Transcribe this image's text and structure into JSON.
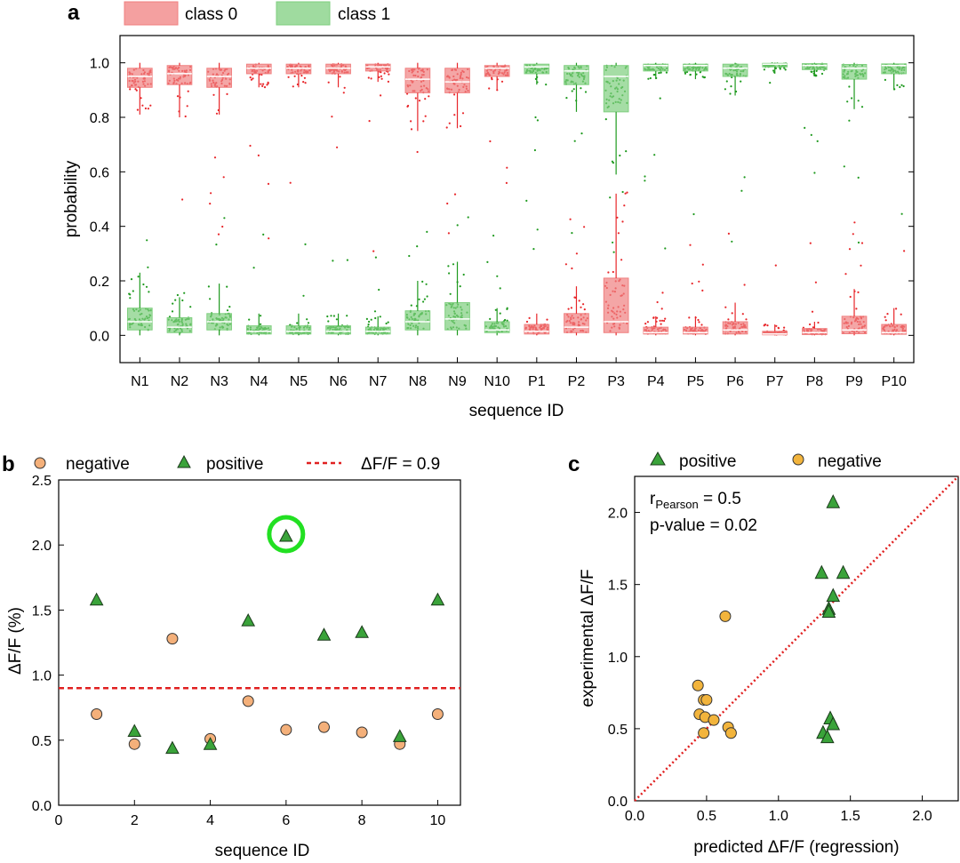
{
  "chart_data": [
    {
      "id": "a",
      "panel_label": "a",
      "type": "box",
      "xlabel": "sequence ID",
      "ylabel": "probability",
      "ylim": [
        -0.1,
        1.1
      ],
      "yticks": [
        "0.0",
        "0.2",
        "0.4",
        "0.6",
        "0.8",
        "1.0"
      ],
      "categories": [
        "N1",
        "N2",
        "N3",
        "N4",
        "N5",
        "N6",
        "N7",
        "N8",
        "N9",
        "N10",
        "P1",
        "P2",
        "P3",
        "P4",
        "P5",
        "P6",
        "P7",
        "P8",
        "P9",
        "P10"
      ],
      "legend": [
        {
          "name": "class 0",
          "color": "#f08080"
        },
        {
          "name": "class 1",
          "color": "#7fcf7f"
        }
      ],
      "series": [
        {
          "name": "class 0",
          "color": "#f08080",
          "point_color": "#e8262a",
          "boxes": [
            {
              "cat": "N1",
              "q1": 0.91,
              "median": 0.95,
              "q3": 0.98,
              "wlo": 0.81,
              "whi": 1.0
            },
            {
              "cat": "N2",
              "q1": 0.92,
              "median": 0.96,
              "q3": 0.99,
              "wlo": 0.8,
              "whi": 1.0
            },
            {
              "cat": "N3",
              "q1": 0.91,
              "median": 0.95,
              "q3": 0.98,
              "wlo": 0.81,
              "whi": 1.0
            },
            {
              "cat": "N4",
              "q1": 0.96,
              "median": 0.98,
              "q3": 0.995,
              "wlo": 0.91,
              "whi": 1.0
            },
            {
              "cat": "N5",
              "q1": 0.96,
              "median": 0.98,
              "q3": 0.995,
              "wlo": 0.91,
              "whi": 1.0
            },
            {
              "cat": "N6",
              "q1": 0.96,
              "median": 0.98,
              "q3": 0.995,
              "wlo": 0.91,
              "whi": 1.0
            },
            {
              "cat": "N7",
              "q1": 0.97,
              "median": 0.985,
              "q3": 0.995,
              "wlo": 0.93,
              "whi": 1.0
            },
            {
              "cat": "N8",
              "q1": 0.89,
              "median": 0.94,
              "q3": 0.98,
              "wlo": 0.75,
              "whi": 1.0
            },
            {
              "cat": "N9",
              "q1": 0.89,
              "median": 0.93,
              "q3": 0.98,
              "wlo": 0.76,
              "whi": 1.0
            },
            {
              "cat": "N10",
              "q1": 0.95,
              "median": 0.98,
              "q3": 0.99,
              "wlo": 0.9,
              "whi": 1.0
            },
            {
              "cat": "P1",
              "q1": 0.005,
              "median": 0.015,
              "q3": 0.04,
              "wlo": 0.0,
              "whi": 0.08
            },
            {
              "cat": "P2",
              "q1": 0.01,
              "median": 0.03,
              "q3": 0.08,
              "wlo": 0.0,
              "whi": 0.18
            },
            {
              "cat": "P3",
              "q1": 0.01,
              "median": 0.05,
              "q3": 0.21,
              "wlo": 0.0,
              "whi": 0.52
            },
            {
              "cat": "P4",
              "q1": 0.005,
              "median": 0.01,
              "q3": 0.03,
              "wlo": 0.0,
              "whi": 0.07
            },
            {
              "cat": "P5",
              "q1": 0.005,
              "median": 0.01,
              "q3": 0.03,
              "wlo": 0.0,
              "whi": 0.07
            },
            {
              "cat": "P6",
              "q1": 0.005,
              "median": 0.02,
              "q3": 0.05,
              "wlo": 0.0,
              "whi": 0.12
            },
            {
              "cat": "P7",
              "q1": 0.002,
              "median": 0.005,
              "q3": 0.015,
              "wlo": 0.0,
              "whi": 0.04
            },
            {
              "cat": "P8",
              "q1": 0.003,
              "median": 0.01,
              "q3": 0.025,
              "wlo": 0.0,
              "whi": 0.05
            },
            {
              "cat": "P9",
              "q1": 0.006,
              "median": 0.02,
              "q3": 0.07,
              "wlo": 0.0,
              "whi": 0.17
            },
            {
              "cat": "P10",
              "q1": 0.004,
              "median": 0.01,
              "q3": 0.04,
              "wlo": 0.0,
              "whi": 0.1
            }
          ]
        },
        {
          "name": "class 1",
          "color": "#7fcf7f",
          "point_color": "#1f9a1f",
          "boxes": [
            {
              "cat": "N1",
              "q1": 0.02,
              "median": 0.05,
              "q3": 0.1,
              "wlo": 0.0,
              "whi": 0.23
            },
            {
              "cat": "N2",
              "q1": 0.01,
              "median": 0.03,
              "q3": 0.065,
              "wlo": 0.0,
              "whi": 0.14
            },
            {
              "cat": "N3",
              "q1": 0.02,
              "median": 0.05,
              "q3": 0.08,
              "wlo": 0.0,
              "whi": 0.19
            },
            {
              "cat": "N4",
              "q1": 0.005,
              "median": 0.015,
              "q3": 0.035,
              "wlo": 0.0,
              "whi": 0.08
            },
            {
              "cat": "N5",
              "q1": 0.005,
              "median": 0.015,
              "q3": 0.035,
              "wlo": 0.0,
              "whi": 0.08
            },
            {
              "cat": "N6",
              "q1": 0.005,
              "median": 0.015,
              "q3": 0.035,
              "wlo": 0.0,
              "whi": 0.08
            },
            {
              "cat": "N7",
              "q1": 0.005,
              "median": 0.015,
              "q3": 0.03,
              "wlo": 0.0,
              "whi": 0.07
            },
            {
              "cat": "N8",
              "q1": 0.02,
              "median": 0.05,
              "q3": 0.09,
              "wlo": 0.0,
              "whi": 0.2
            },
            {
              "cat": "N9",
              "q1": 0.02,
              "median": 0.06,
              "q3": 0.12,
              "wlo": 0.0,
              "whi": 0.27
            },
            {
              "cat": "N10",
              "q1": 0.01,
              "median": 0.02,
              "q3": 0.05,
              "wlo": 0.0,
              "whi": 0.1
            },
            {
              "cat": "P1",
              "q1": 0.96,
              "median": 0.985,
              "q3": 0.995,
              "wlo": 0.92,
              "whi": 1.0
            },
            {
              "cat": "P2",
              "q1": 0.92,
              "median": 0.97,
              "q3": 0.99,
              "wlo": 0.82,
              "whi": 1.0
            },
            {
              "cat": "P3",
              "q1": 0.82,
              "median": 0.95,
              "q3": 0.99,
              "wlo": 0.59,
              "whi": 1.0
            },
            {
              "cat": "P4",
              "q1": 0.97,
              "median": 0.99,
              "q3": 0.995,
              "wlo": 0.94,
              "whi": 1.0
            },
            {
              "cat": "P5",
              "q1": 0.97,
              "median": 0.99,
              "q3": 0.995,
              "wlo": 0.94,
              "whi": 1.0
            },
            {
              "cat": "P6",
              "q1": 0.95,
              "median": 0.98,
              "q3": 0.995,
              "wlo": 0.88,
              "whi": 1.0
            },
            {
              "cat": "P7",
              "q1": 0.985,
              "median": 0.995,
              "q3": 0.998,
              "wlo": 0.96,
              "whi": 1.0
            },
            {
              "cat": "P8",
              "q1": 0.975,
              "median": 0.99,
              "q3": 0.997,
              "wlo": 0.95,
              "whi": 1.0
            },
            {
              "cat": "P9",
              "q1": 0.94,
              "median": 0.98,
              "q3": 0.994,
              "wlo": 0.83,
              "whi": 1.0
            },
            {
              "cat": "P10",
              "q1": 0.96,
              "median": 0.99,
              "q3": 0.996,
              "wlo": 0.9,
              "whi": 1.0
            }
          ]
        }
      ]
    },
    {
      "id": "b",
      "panel_label": "b",
      "type": "scatter",
      "xlabel": "sequence ID",
      "ylabel": "ΔF/F (%)",
      "xlim": [
        0,
        10.6
      ],
      "ylim": [
        0.0,
        2.5
      ],
      "xticks": [
        "0",
        "2",
        "4",
        "6",
        "8",
        "10"
      ],
      "yticks": [
        "0.0",
        "0.5",
        "1.0",
        "1.5",
        "2.0",
        "2.5"
      ],
      "series": [
        {
          "name": "negative",
          "marker": "circle",
          "color": "#f4b07a",
          "points": [
            [
              1,
              0.7
            ],
            [
              2,
              0.47
            ],
            [
              3,
              1.28
            ],
            [
              4,
              0.51
            ],
            [
              5,
              0.8
            ],
            [
              6,
              0.58
            ],
            [
              7,
              0.6
            ],
            [
              8,
              0.56
            ],
            [
              9,
              0.47
            ],
            [
              10,
              0.7
            ]
          ]
        },
        {
          "name": "positive",
          "marker": "triangle",
          "color": "#3aa33a",
          "points": [
            [
              1,
              1.58
            ],
            [
              2,
              0.57
            ],
            [
              3,
              0.44
            ],
            [
              4,
              0.47
            ],
            [
              5,
              1.42
            ],
            [
              6,
              2.07
            ],
            [
              7,
              1.31
            ],
            [
              8,
              1.33
            ],
            [
              9,
              0.53
            ],
            [
              10,
              1.58
            ]
          ]
        }
      ],
      "reference_line": {
        "label": "ΔF/F = 0.9",
        "y": 0.9,
        "color": "#e02020",
        "style": "dashed"
      },
      "highlight": {
        "x": 6,
        "y": 2.07,
        "color": "#22e022"
      }
    },
    {
      "id": "c",
      "panel_label": "c",
      "type": "scatter",
      "xlabel": "predicted ΔF/F (regression)",
      "ylabel": "experimental ΔF/F",
      "xlim": [
        0.0,
        2.25
      ],
      "ylim": [
        0.0,
        2.25
      ],
      "xticks": [
        "0.0",
        "0.5",
        "1.0",
        "1.5",
        "2.0"
      ],
      "yticks": [
        "0.0",
        "0.5",
        "1.0",
        "1.5",
        "2.0"
      ],
      "series": [
        {
          "name": "positive",
          "marker": "triangle",
          "color": "#3aa33a",
          "points": [
            [
              1.38,
              2.07
            ],
            [
              1.3,
              1.58
            ],
            [
              1.45,
              1.58
            ],
            [
              1.38,
              1.42
            ],
            [
              1.35,
              1.33
            ],
            [
              1.35,
              1.31
            ],
            [
              1.36,
              0.57
            ],
            [
              1.38,
              0.53
            ],
            [
              1.31,
              0.47
            ],
            [
              1.34,
              0.44
            ]
          ]
        },
        {
          "name": "negative",
          "marker": "circle",
          "color": "#f2b43c",
          "points": [
            [
              0.63,
              1.28
            ],
            [
              0.44,
              0.8
            ],
            [
              0.48,
              0.7
            ],
            [
              0.5,
              0.7
            ],
            [
              0.45,
              0.6
            ],
            [
              0.49,
              0.58
            ],
            [
              0.55,
              0.56
            ],
            [
              0.65,
              0.51
            ],
            [
              0.48,
              0.47
            ],
            [
              0.67,
              0.47
            ]
          ]
        }
      ],
      "reference_line": {
        "type": "identity",
        "color": "#e02020",
        "style": "dotted"
      },
      "annotation": {
        "r_main": "r",
        "r_sub": "Pearson",
        "r_value": " = 0.5",
        "p_text": "p-value = 0.02"
      }
    }
  ]
}
